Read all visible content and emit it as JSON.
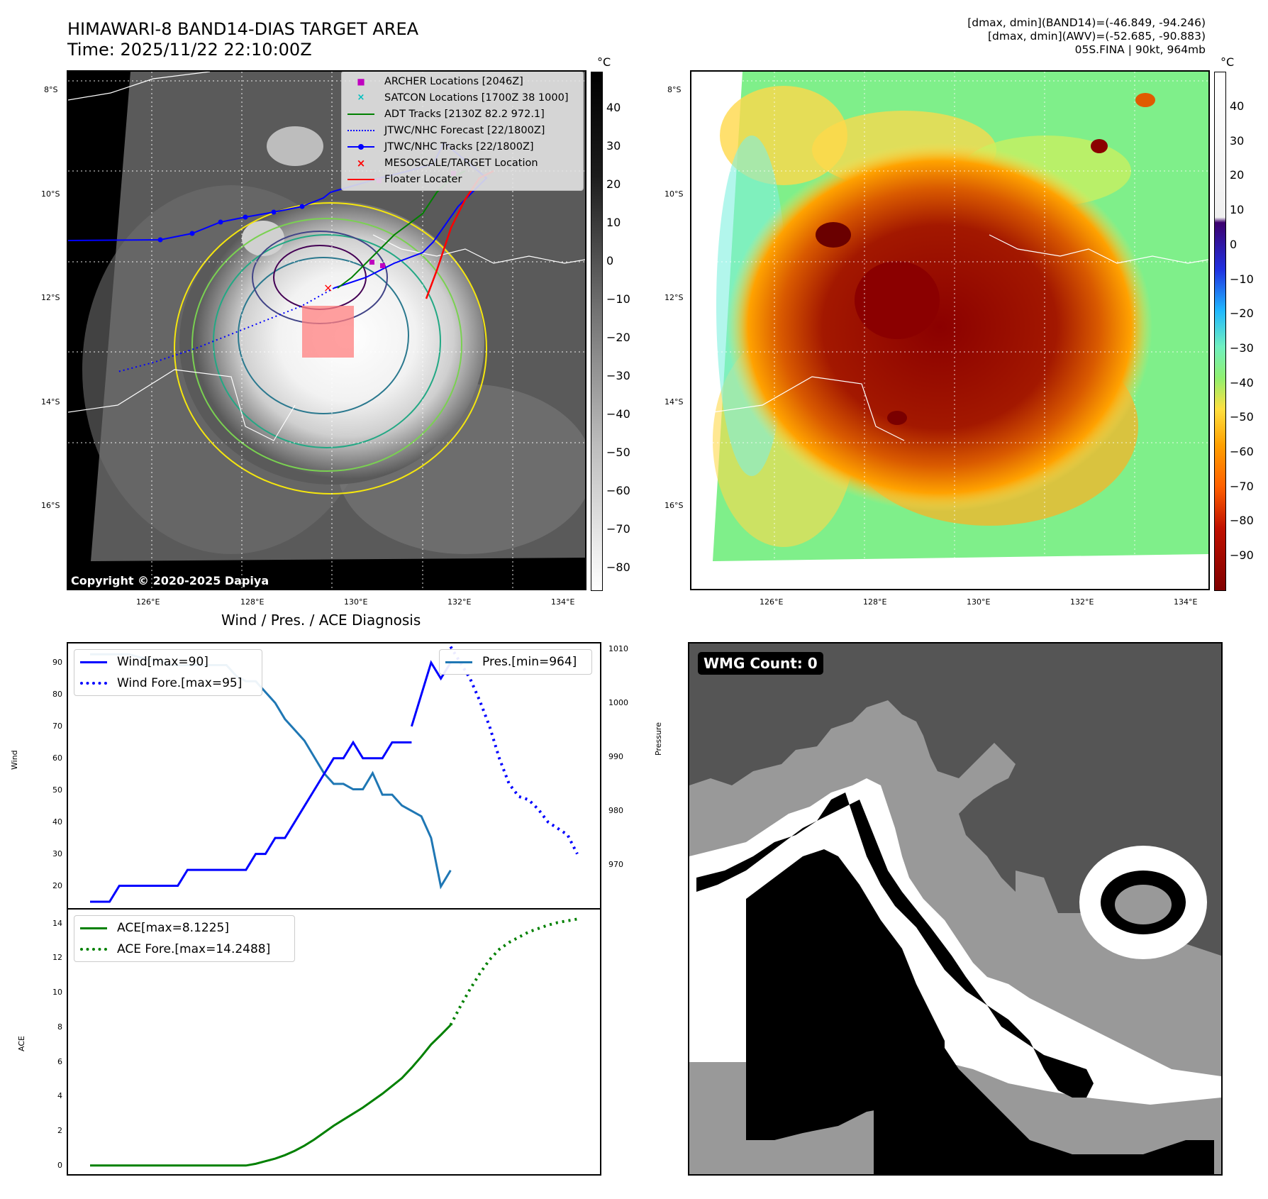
{
  "header": {
    "title_line1": "HIMAWARI-8 BAND14-DIAS TARGET AREA",
    "title_line2": "Time: 2025/11/22 22:10:00Z",
    "info_line1": "[dmax, dmin](BAND14)=(-46.849, -94.246)",
    "info_line2": "[dmax, dmin](AWV)=(-52.685, -90.883)",
    "info_line3": "05S.FINA | 90kt, 964mb"
  },
  "map_axes": {
    "lat_labels": [
      "8°S",
      "10°S",
      "12°S",
      "14°S",
      "16°S"
    ],
    "lon_labels": [
      "126°E",
      "128°E",
      "130°E",
      "132°E",
      "134°E"
    ]
  },
  "ir_panel": {
    "colorbar_unit": "°C",
    "colorbar_ticks": [
      "40",
      "30",
      "20",
      "10",
      "0",
      "−10",
      "−20",
      "−30",
      "−40",
      "−50",
      "−60",
      "−70",
      "−80"
    ],
    "copyright": "Copyright © 2020-2025 Dapiya",
    "legend": [
      {
        "label": "ARCHER Locations [2046Z]",
        "color": "#bf00bf"
      },
      {
        "label": "SATCON Locations [1700Z 38 1000]",
        "color": "#00bfbf"
      },
      {
        "label": "ADT Tracks [2130Z 82.2 972.1]",
        "color": "#008000"
      },
      {
        "label": "JTWC/NHC Forecast [22/1800Z]",
        "color": "#0000ff"
      },
      {
        "label": "JTWC/NHC Tracks [22/1800Z]",
        "color": "#0000ff"
      },
      {
        "label": "MESOSCALE/TARGET Location",
        "color": "#ff0000"
      },
      {
        "label": "Floater Locater",
        "color": "#ff0000"
      }
    ]
  },
  "awv_panel": {
    "colorbar_unit": "°C",
    "colorbar_ticks": [
      "40",
      "30",
      "20",
      "10",
      "0",
      "−10",
      "−20",
      "−30",
      "−40",
      "−50",
      "−60",
      "−70",
      "−80",
      "−90"
    ]
  },
  "wmg_panel": {
    "badge": "WMG Count: 0"
  },
  "diag_panel": {
    "title": "Wind / Pres. / ACE Diagnosis",
    "wind_ylabel": "Wind",
    "pres_ylabel": "Pressure",
    "ace_ylabel": "ACE",
    "wind_legend": [
      "Wind[max=90]",
      "Wind Fore.[max=95]"
    ],
    "pres_legend": [
      "Pres.[min=964]"
    ],
    "ace_legend": [
      "ACE[max=8.1225]",
      "ACE Fore.[max=14.2488]"
    ],
    "colors": {
      "wind": "#0000ff",
      "pres": "#1f77b4",
      "ace": "#008000"
    }
  },
  "chart_data": [
    {
      "type": "line",
      "name": "wind",
      "ylabel": "Wind",
      "ylim": [
        13,
        96
      ],
      "yticks": [
        20,
        30,
        40,
        50,
        60,
        70,
        80,
        90
      ],
      "x_index": [
        0,
        1,
        2,
        3,
        4,
        5,
        6,
        7,
        8,
        9,
        10,
        11,
        12,
        13,
        14,
        15,
        16,
        17,
        18,
        19,
        20,
        21,
        22,
        23,
        24,
        25,
        26,
        27,
        28,
        29,
        30,
        31,
        32,
        33,
        34,
        35,
        36,
        37,
        38,
        39,
        40,
        41,
        42,
        43,
        44,
        45,
        46,
        47,
        48,
        49,
        50
      ],
      "series": [
        {
          "name": "Wind[max=90]",
          "style": "solid",
          "x": [
            0,
            1,
            2,
            3,
            4,
            5,
            6,
            7,
            8,
            9,
            10,
            11,
            12,
            13,
            14,
            15,
            16,
            17,
            18,
            19,
            20,
            21,
            22,
            23,
            24,
            25,
            26,
            27,
            28,
            29,
            30,
            31,
            32,
            33
          ],
          "values": [
            15,
            15,
            15,
            20,
            20,
            20,
            20,
            20,
            20,
            20,
            25,
            25,
            25,
            25,
            25,
            25,
            25,
            30,
            30,
            35,
            35,
            40,
            45,
            50,
            55,
            60,
            60,
            65,
            60,
            60,
            60,
            65,
            65,
            65
          ]
        },
        {
          "name": "Wind Fore.[max=95]",
          "style": "dotted",
          "x": [
            37,
            38,
            39,
            40,
            41,
            42,
            43,
            44,
            45,
            46,
            47,
            48,
            49,
            50
          ],
          "values": [
            95,
            90,
            85,
            78,
            70,
            60,
            52,
            48,
            47,
            44,
            40,
            38,
            36,
            30
          ]
        }
      ],
      "wind_tail": {
        "x": [
          33,
          34,
          35,
          36,
          37
        ],
        "values": [
          70,
          80,
          90,
          85,
          90
        ]
      }
    },
    {
      "type": "line",
      "name": "pressure",
      "ylabel": "Pressure",
      "ylim": [
        962,
        1011
      ],
      "yticks": [
        970,
        980,
        990,
        1000,
        1010
      ],
      "series": [
        {
          "name": "Pres.[min=964]",
          "style": "solid",
          "x": [
            0,
            2,
            4,
            6,
            7,
            8,
            9,
            10,
            12,
            14,
            15,
            16,
            17,
            18,
            19,
            20,
            21,
            22,
            23,
            24,
            25,
            26,
            27,
            28,
            29,
            30,
            31,
            32,
            33,
            34,
            35,
            36,
            37
          ],
          "values": [
            1009,
            1009,
            1009,
            1008,
            1008,
            1007,
            1007,
            1007,
            1007,
            1007,
            1005,
            1004,
            1004,
            1002,
            1000,
            997,
            995,
            993,
            990,
            987,
            985,
            985,
            984,
            984,
            987,
            983,
            983,
            981,
            980,
            979,
            975,
            966,
            969
          ]
        }
      ]
    },
    {
      "type": "line",
      "name": "ace",
      "ylabel": "ACE",
      "ylim": [
        -0.5,
        14.8
      ],
      "yticks": [
        0,
        2,
        4,
        6,
        8,
        10,
        12,
        14
      ],
      "series": [
        {
          "name": "ACE[max=8.1225]",
          "style": "solid",
          "x": [
            0,
            2,
            4,
            6,
            8,
            10,
            12,
            14,
            16,
            17,
            18,
            19,
            20,
            21,
            22,
            23,
            24,
            25,
            26,
            27,
            28,
            29,
            30,
            31,
            32,
            33,
            34,
            35,
            36,
            37
          ],
          "values": [
            0,
            0,
            0,
            0,
            0,
            0,
            0,
            0,
            0,
            0.1,
            0.25,
            0.4,
            0.6,
            0.85,
            1.15,
            1.5,
            1.9,
            2.3,
            2.65,
            3.0,
            3.35,
            3.75,
            4.15,
            4.6,
            5.05,
            5.65,
            6.3,
            7.0,
            7.55,
            8.1225
          ]
        },
        {
          "name": "ACE Fore.[max=14.2488]",
          "style": "dotted",
          "x": [
            37,
            38,
            39,
            40,
            41,
            42,
            43,
            44,
            45,
            46,
            47,
            48,
            49,
            50
          ],
          "values": [
            8.1225,
            9.2,
            10.2,
            11.1,
            11.9,
            12.5,
            12.9,
            13.2,
            13.5,
            13.7,
            13.9,
            14.05,
            14.15,
            14.2488
          ]
        }
      ]
    }
  ]
}
